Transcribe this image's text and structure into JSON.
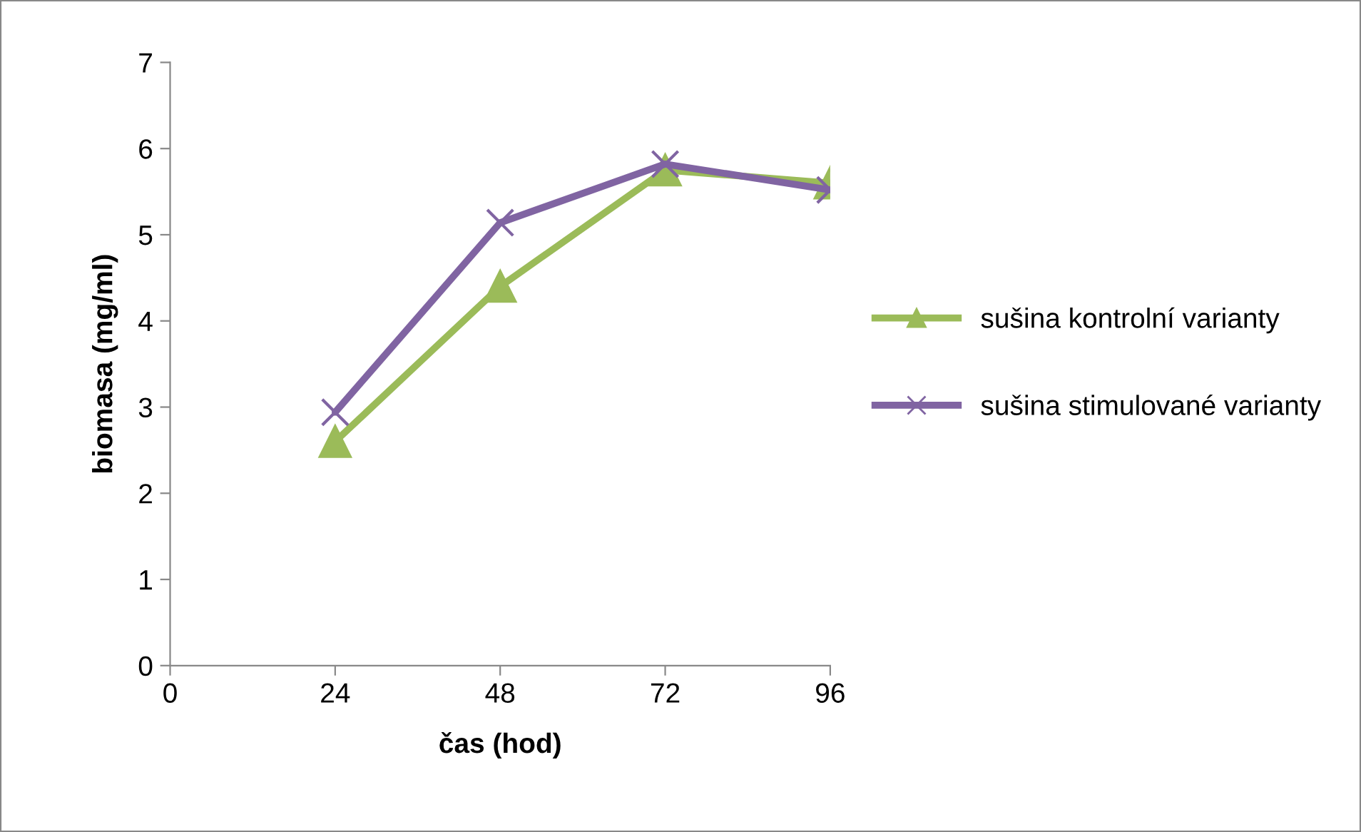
{
  "chart_data": {
    "type": "line",
    "xlabel": "čas (hod)",
    "ylabel": "biomasa (mg/ml)",
    "x": [
      24,
      48,
      72,
      96
    ],
    "series": [
      {
        "name": "sušina kontrolní varianty",
        "color": "#9bbb59",
        "marker": "triangle",
        "values": [
          2.6,
          4.4,
          5.75,
          5.6
        ]
      },
      {
        "name": "sušina stimulované varianty",
        "color": "#8064a2",
        "marker": "cross",
        "values": [
          2.94,
          5.14,
          5.82,
          5.52
        ]
      }
    ],
    "xlim": [
      0,
      96
    ],
    "xticks": [
      0,
      24,
      48,
      72,
      96
    ],
    "ylim": [
      0,
      7
    ],
    "yticks": [
      0,
      1,
      2,
      3,
      4,
      5,
      6,
      7
    ],
    "grid": false,
    "legend": "right",
    "line_style": "solid"
  }
}
